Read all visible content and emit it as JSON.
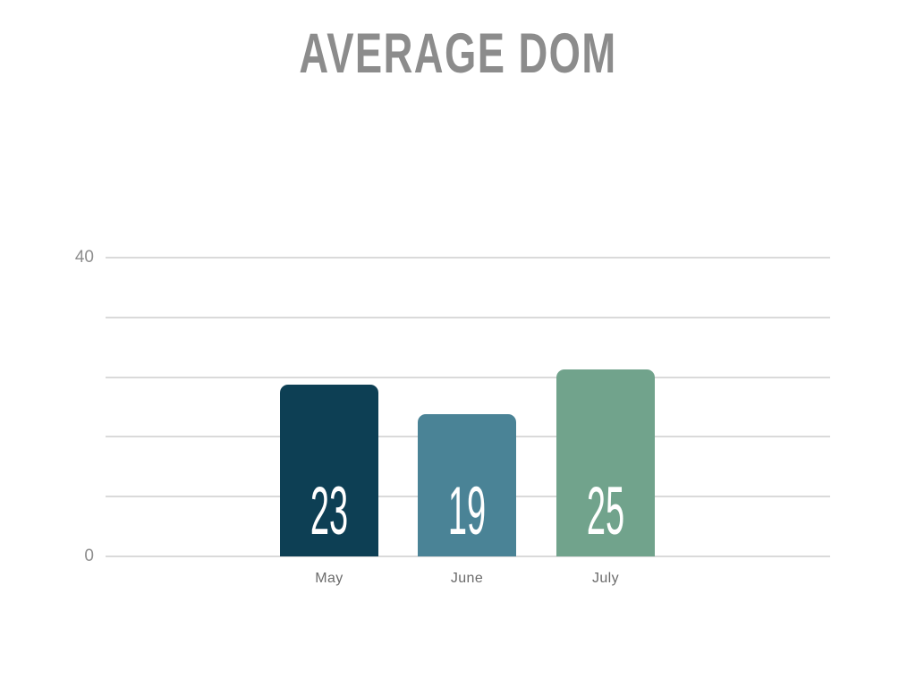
{
  "page": {
    "background": "#ffffff"
  },
  "chart_data": {
    "type": "bar",
    "title": "AVERAGE DOM",
    "categories": [
      "May",
      "June",
      "July"
    ],
    "values": [
      23,
      19,
      25
    ],
    "value_labels": [
      "23",
      "19",
      "25"
    ],
    "bar_colors": [
      "#0d3f54",
      "#4a8396",
      "#71a38c"
    ],
    "value_label_color": "#ffffff",
    "xlabel": "",
    "ylabel": "",
    "ylim": [
      0,
      40
    ],
    "gridline_values": [
      0,
      8,
      16,
      24,
      32,
      40
    ],
    "ytick_labels": [
      {
        "value": 40,
        "label": "40"
      },
      {
        "value": 0,
        "label": "0"
      }
    ],
    "grid": "horizontal",
    "legend": "none",
    "colors": {
      "gridline": "#dadada",
      "title": "#8c8c8c",
      "ytick": "#8d8d8d",
      "category_label": "#6b6b6b",
      "background": "#ffffff"
    }
  }
}
